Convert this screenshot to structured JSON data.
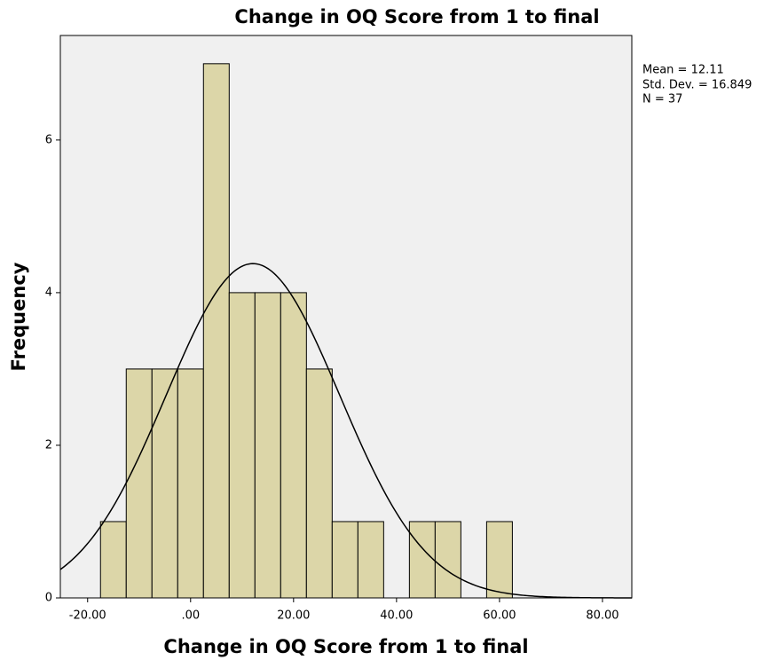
{
  "chart_data": {
    "type": "histogram",
    "title": "Change in OQ Score from 1 to final",
    "x_label": "Change in OQ Score from 1 to final",
    "y_label": "Frequency",
    "bins": [
      -17.5,
      -12.5,
      -7.5,
      -2.5,
      2.5,
      7.5,
      12.5,
      17.5,
      22.5,
      27.5,
      32.5,
      37.5,
      42.5,
      47.5,
      52.5,
      57.5,
      62.5
    ],
    "values": [
      1,
      3,
      3,
      3,
      7,
      4,
      4,
      4,
      3,
      1,
      1,
      0,
      1,
      1,
      0,
      1
    ],
    "color": "#dcd6a8",
    "xlim": [
      -25.3,
      85.7
    ],
    "ylim": [
      0,
      7.37
    ],
    "xticks": [
      {
        "value": -20,
        "label": "-20.00"
      },
      {
        "value": 0,
        "label": ".00"
      },
      {
        "value": 20,
        "label": "20.00"
      },
      {
        "value": 40,
        "label": "40.00"
      },
      {
        "value": 60,
        "label": "60.00"
      },
      {
        "value": 80,
        "label": "80.00"
      }
    ],
    "yticks": [
      0,
      2,
      4,
      6
    ],
    "grid": false,
    "normal_curve": true,
    "stats": {
      "mean": {
        "value": 12.11,
        "label": "Mean = 12.11"
      },
      "std_dev": {
        "value": 16.849,
        "label": "Std. Dev. = 16.849"
      },
      "n": {
        "value": 37,
        "label": "N = 37"
      }
    }
  }
}
